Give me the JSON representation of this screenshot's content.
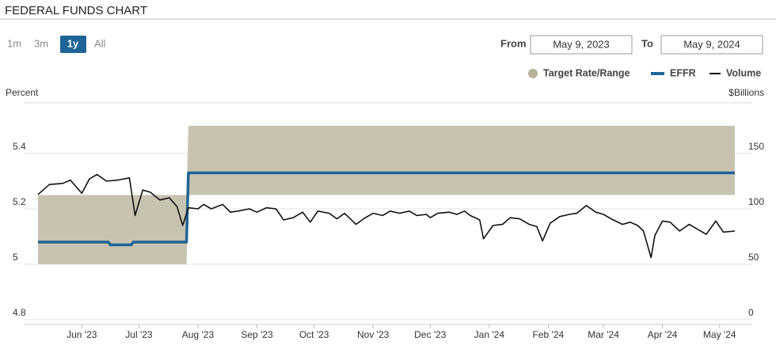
{
  "header": {
    "title": "FEDERAL FUNDS CHART"
  },
  "controls": {
    "ranges": [
      "1m",
      "3m",
      "1y",
      "All"
    ],
    "selected_range": "1y",
    "from_label": "From",
    "from_value": "May 9, 2023",
    "to_label": "To",
    "to_value": "May 9, 2024"
  },
  "chart_data": {
    "type": "line",
    "ylabel": "Percent",
    "y2label": "$Billions",
    "xlim": [
      "2023-05-09",
      "2024-05-09"
    ],
    "xticks": [
      {
        "value": "2023-06-01",
        "label": "Jun '23"
      },
      {
        "value": "2023-07-01",
        "label": "Jul '23"
      },
      {
        "value": "2023-08-01",
        "label": "Aug '23"
      },
      {
        "value": "2023-09-01",
        "label": "Sep '23"
      },
      {
        "value": "2023-10-01",
        "label": "Oct '23"
      },
      {
        "value": "2023-11-01",
        "label": "Nov '23"
      },
      {
        "value": "2023-12-01",
        "label": "Dec '23"
      },
      {
        "value": "2024-01-01",
        "label": "Jan '24"
      },
      {
        "value": "2024-02-01",
        "label": "Feb '24"
      },
      {
        "value": "2024-03-01",
        "label": "Mar '24"
      },
      {
        "value": "2024-04-01",
        "label": "Apr '24"
      },
      {
        "value": "2024-05-01",
        "label": "May '24"
      }
    ],
    "ylim": [
      4.8,
      5.6
    ],
    "yticks": [
      4.8,
      5,
      5.2,
      5.4
    ],
    "y2lim": [
      0,
      200
    ],
    "y2ticks": [
      0,
      50,
      100,
      150
    ],
    "grid": true,
    "series": [
      {
        "name": "Target Rate/Range",
        "kind": "range",
        "color": "#c8c3b0",
        "legend_color": "#b7b29a",
        "x": [
          "2023-05-09",
          "2023-07-26",
          "2023-07-27",
          "2024-05-09"
        ],
        "values": [
          5,
          5,
          5.25,
          5.25
        ],
        "upper": [
          5.25,
          5.25,
          5.5,
          5.5
        ]
      },
      {
        "name": "EFFR",
        "kind": "line",
        "color": "#1f6496",
        "x": [
          "2023-05-09",
          "2023-06-15",
          "2023-06-16",
          "2023-06-27",
          "2023-06-28",
          "2023-07-26",
          "2023-07-27",
          "2024-05-09"
        ],
        "values": [
          5.08,
          5.08,
          5.07,
          5.07,
          5.08,
          5.08,
          5.33,
          5.33
        ]
      },
      {
        "name": "Volume",
        "kind": "line",
        "axis": "y2",
        "color": "#111111",
        "x": [
          "2023-05-09",
          "2023-05-15",
          "2023-05-22",
          "2023-05-26",
          "2023-06-01",
          "2023-06-05",
          "2023-06-09",
          "2023-06-14",
          "2023-06-20",
          "2023-06-26",
          "2023-06-29",
          "2023-07-03",
          "2023-07-07",
          "2023-07-12",
          "2023-07-17",
          "2023-07-21",
          "2023-07-24",
          "2023-07-27",
          "2023-08-01",
          "2023-08-04",
          "2023-08-08",
          "2023-08-14",
          "2023-08-18",
          "2023-08-22",
          "2023-08-28",
          "2023-09-01",
          "2023-09-06",
          "2023-09-11",
          "2023-09-15",
          "2023-09-20",
          "2023-09-25",
          "2023-09-29",
          "2023-10-03",
          "2023-10-09",
          "2023-10-13",
          "2023-10-17",
          "2023-10-23",
          "2023-10-27",
          "2023-11-01",
          "2023-11-06",
          "2023-11-10",
          "2023-11-15",
          "2023-11-20",
          "2023-11-24",
          "2023-11-29",
          "2023-12-01",
          "2023-12-05",
          "2023-12-11",
          "2023-12-15",
          "2023-12-19",
          "2023-12-22",
          "2023-12-27",
          "2023-12-29",
          "2024-01-03",
          "2024-01-08",
          "2024-01-12",
          "2024-01-17",
          "2024-01-22",
          "2024-01-26",
          "2024-01-29",
          "2024-02-02",
          "2024-02-07",
          "2024-02-12",
          "2024-02-16",
          "2024-02-21",
          "2024-02-26",
          "2024-03-01",
          "2024-03-05",
          "2024-03-11",
          "2024-03-15",
          "2024-03-19",
          "2024-03-22",
          "2024-03-26",
          "2024-03-28",
          "2024-04-01",
          "2024-04-05",
          "2024-04-10",
          "2024-04-15",
          "2024-04-19",
          "2024-04-24",
          "2024-04-29",
          "2024-05-03",
          "2024-05-09"
        ],
        "values": [
          113,
          122,
          123,
          126,
          114,
          127,
          131,
          125,
          126,
          128,
          94,
          117,
          115,
          108,
          110,
          102,
          85,
          101,
          100,
          104,
          100,
          104,
          97,
          98,
          100,
          97,
          101,
          100,
          90,
          92,
          97,
          88,
          98,
          96,
          91,
          96,
          86,
          91,
          96,
          94,
          98,
          96,
          98,
          94,
          95,
          92,
          96,
          97,
          95,
          98,
          94,
          90,
          73,
          85,
          86,
          92,
          91,
          86,
          84,
          71,
          87,
          93,
          95,
          96,
          103,
          97,
          95,
          91,
          86,
          88,
          85,
          80,
          56,
          76,
          89,
          88,
          80,
          86,
          82,
          77,
          89,
          79,
          80
        ]
      }
    ],
    "legend": "top-right"
  }
}
